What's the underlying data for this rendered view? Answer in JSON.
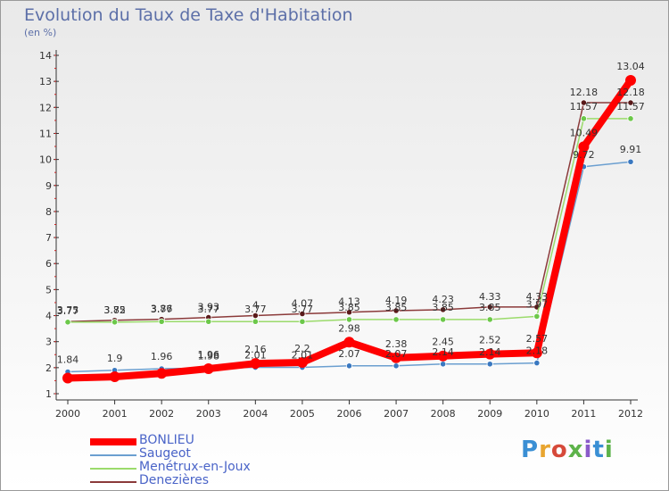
{
  "header": {
    "title": "Evolution du Taux de Taxe d'Habitation",
    "subtitle": "(en %)"
  },
  "brand": {
    "name": "Proxiti"
  },
  "chart_data": {
    "type": "line",
    "title": "Evolution du Taux de Taxe d'Habitation",
    "subtitle": "(en %)",
    "xlabel": "",
    "ylabel": "",
    "x": [
      2000,
      2001,
      2002,
      2003,
      2004,
      2005,
      2006,
      2007,
      2008,
      2009,
      2010,
      2011,
      2012
    ],
    "ylim": [
      1,
      14
    ],
    "yticks": [
      1,
      2,
      3,
      4,
      5,
      6,
      7,
      8,
      9,
      10,
      11,
      12,
      13,
      14
    ],
    "grid": false,
    "legend_position": "bottom-left",
    "series": [
      {
        "name": "BONLIEU",
        "color": "#ff0000",
        "values": [
          1.6,
          1.65,
          1.78,
          1.96,
          2.16,
          2.2,
          2.98,
          2.38,
          2.45,
          2.52,
          2.57,
          10.49,
          13.04
        ],
        "labels": [
          "",
          "",
          "",
          "1.96",
          "2.16",
          "2.2",
          "2.98",
          "2.38",
          "2.45",
          "2.52",
          "2.57",
          "10.49",
          "13.04"
        ]
      },
      {
        "name": "Saugeot",
        "color": "#6b9fd0",
        "values": [
          1.84,
          1.9,
          1.96,
          1.98,
          2.01,
          2.01,
          2.07,
          2.07,
          2.14,
          2.14,
          2.18,
          9.72,
          9.91
        ],
        "labels": [
          "1.84",
          "1.9",
          "1.96",
          "1.98",
          "2.01",
          "2.01",
          "2.07",
          "2.07",
          "2.14",
          "2.14",
          "2.18",
          "9.72",
          "9.91"
        ]
      },
      {
        "name": "Menétrux-en-Joux",
        "color": "#9bdb6b",
        "values": [
          3.75,
          3.75,
          3.77,
          3.77,
          3.77,
          3.77,
          3.85,
          3.85,
          3.85,
          3.85,
          3.97,
          11.57,
          11.57
        ],
        "labels": [
          "3.75",
          "3.75",
          "3.77",
          "3.77",
          "3.77",
          "3.77",
          "3.85",
          "3.85",
          "3.85",
          "3.85",
          "3.97",
          "11.57",
          "11.57"
        ]
      },
      {
        "name": "Denezières",
        "color": "#8b3a3a",
        "values": [
          3.77,
          3.82,
          3.86,
          3.93,
          4.0,
          4.07,
          4.13,
          4.19,
          4.23,
          4.33,
          4.33,
          12.18,
          12.18
        ],
        "labels": [
          "3.77",
          "3.82",
          "3.86",
          "3.93",
          "4",
          "4.07",
          "4.13",
          "4.19",
          "4.23",
          "4.33",
          "4.33",
          "12.18",
          "12.18"
        ]
      }
    ]
  }
}
